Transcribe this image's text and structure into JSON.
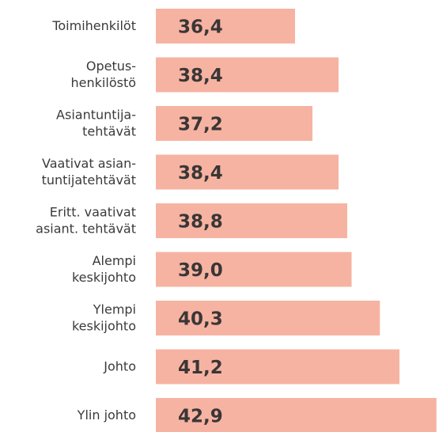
{
  "chart_data": {
    "type": "barh",
    "categories": [
      "Toimihenkilöt",
      "Opetus-\nhenkilöstö",
      "Asiantuntija-\ntehtävät",
      "Vaativat asian-\ntuntijatehtävät",
      "Eritt. vaativat\nasiant. tehtävät",
      "Alempi\nkeskijohto",
      "Ylempi\nkeskijohto",
      "Johto",
      "Ylin johto"
    ],
    "values": [
      36.4,
      38.4,
      37.2,
      38.4,
      38.8,
      39.0,
      40.3,
      41.2,
      42.9
    ],
    "value_labels": [
      "36,4",
      "38,4",
      "37,2",
      "38,4",
      "38,8",
      "39,0",
      "40,3",
      "41,2",
      "42,9"
    ],
    "color": "#f6b3a2",
    "xlim": [
      30,
      43
    ]
  }
}
